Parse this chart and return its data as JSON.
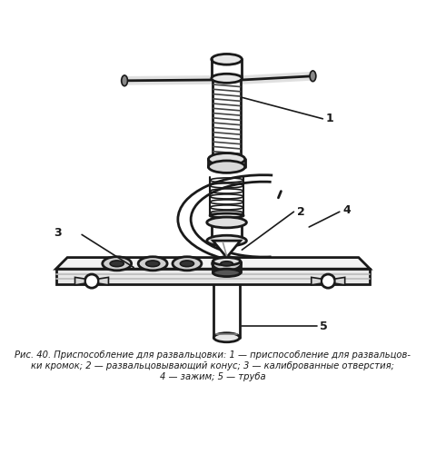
{
  "caption_line1": "Рис. 40. Приспособление для развальцовки: 1 — приспособление для развальцов-",
  "caption_line2": "ки кромок; 2 — развальцовывающий конус; 3 — калиброванные отверстия;",
  "caption_line3": "4 — зажим; 5 — труба",
  "bg_color": "#ffffff",
  "fg_color": "#1a1a1a",
  "fig_width": 4.69,
  "fig_height": 5.0,
  "dpi": 100
}
